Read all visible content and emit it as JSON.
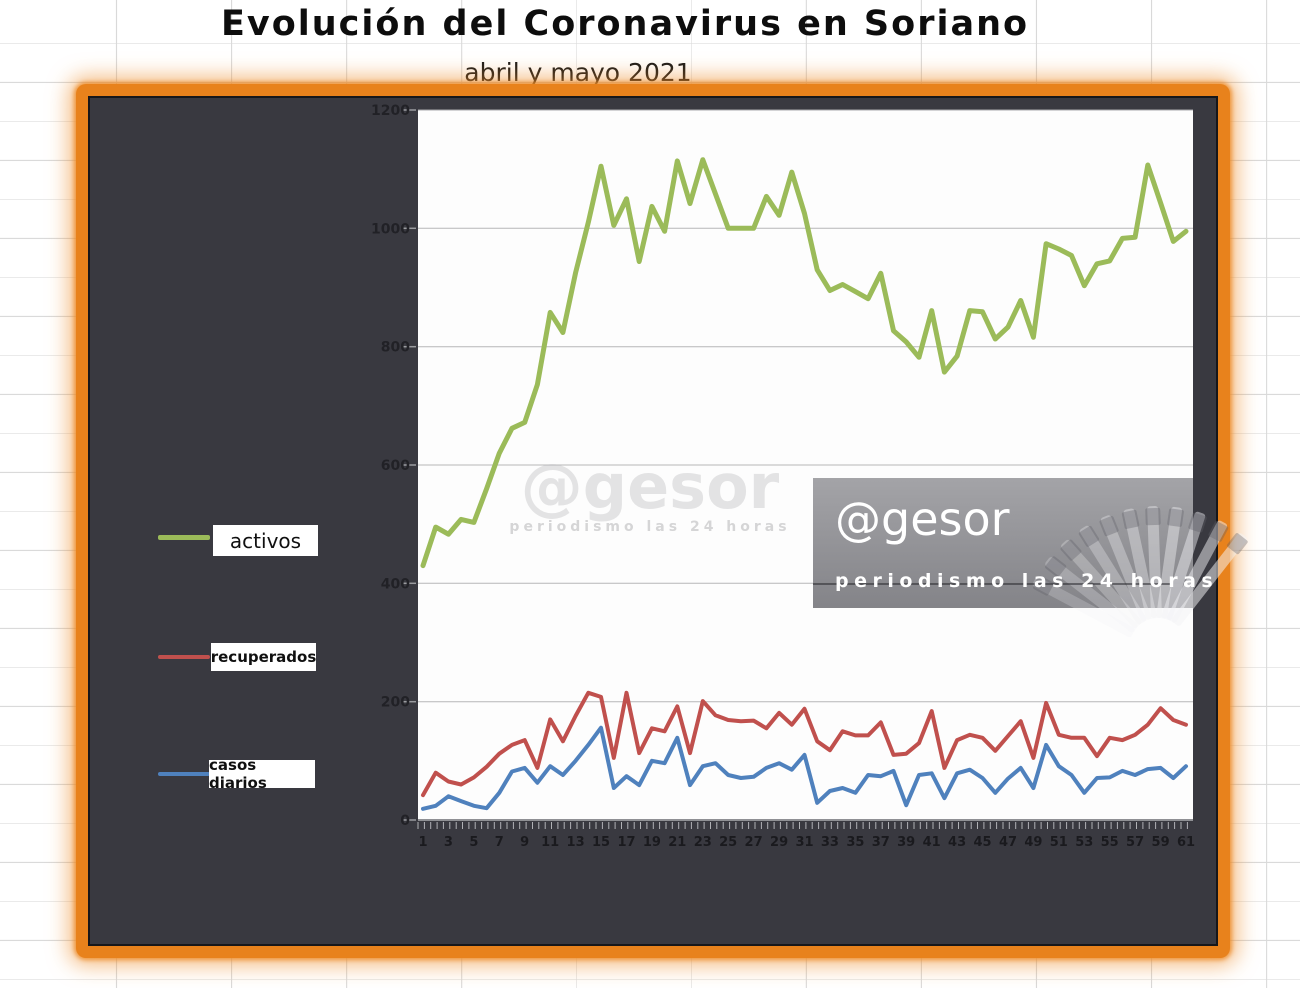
{
  "colors": {
    "frame_orange": "#e8821c",
    "panel_dark": "#393940",
    "plot_white": "#fdfdfd",
    "series_green": "#9bbb59",
    "series_red": "#c0504d",
    "series_blue": "#4f81bd"
  },
  "watermark_center": {
    "logo": "@gesor",
    "tagline": "periodismo las 24 horas"
  },
  "watermark_box": {
    "logo": "@gesor",
    "tagline": "periodismo las 24 horas"
  },
  "chart_data": {
    "type": "line",
    "title": "Evolución del Coronavirus en Soriano",
    "subtitle": "abril y mayo 2021",
    "xlabel": "",
    "ylabel": "",
    "ylim": [
      0,
      1200
    ],
    "yticks": [
      0,
      200,
      400,
      600,
      800,
      1000,
      1200
    ],
    "grid": true,
    "legend_position": "left",
    "x": [
      1,
      2,
      3,
      4,
      5,
      6,
      7,
      8,
      9,
      10,
      11,
      12,
      13,
      14,
      15,
      16,
      17,
      18,
      19,
      20,
      21,
      22,
      23,
      24,
      25,
      26,
      27,
      28,
      29,
      30,
      31,
      32,
      33,
      34,
      35,
      36,
      37,
      38,
      39,
      40,
      41,
      42,
      43,
      44,
      45,
      46,
      47,
      48,
      49,
      50,
      51,
      52,
      53,
      54,
      55,
      56,
      57,
      58,
      59,
      60,
      61
    ],
    "x_tick_labels": [
      1,
      3,
      5,
      7,
      9,
      11,
      13,
      15,
      17,
      19,
      21,
      23,
      25,
      27,
      29,
      31,
      33,
      35,
      37,
      39,
      41,
      43,
      45,
      47,
      49,
      51,
      53,
      55,
      57,
      59,
      61
    ],
    "series": [
      {
        "name": "activos",
        "color": "#9bbb59",
        "width": 5,
        "values": [
          430,
          495,
          483,
          508,
          503,
          560,
          620,
          662,
          672,
          736,
          858,
          824,
          925,
          1010,
          1105,
          1005,
          1050,
          944,
          1037,
          995,
          1114,
          1042,
          1116,
          1058,
          1000,
          1000,
          1000,
          1054,
          1022,
          1095,
          1025,
          930,
          895,
          905,
          893,
          881,
          924,
          827,
          808,
          782,
          861,
          757,
          784,
          861,
          859,
          813,
          833,
          878,
          816,
          974,
          965,
          954,
          903,
          940,
          945,
          983,
          985,
          1107,
          1043,
          978,
          995
        ]
      },
      {
        "name": "recuperados",
        "color": "#c0504d",
        "width": 4,
        "values": [
          42,
          80,
          65,
          60,
          72,
          90,
          112,
          127,
          135,
          88,
          170,
          133,
          176,
          215,
          208,
          105,
          215,
          113,
          155,
          150,
          192,
          113,
          201,
          177,
          169,
          167,
          168,
          155,
          181,
          161,
          188,
          133,
          118,
          150,
          143,
          143,
          165,
          110,
          112,
          130,
          184,
          88,
          135,
          144,
          139,
          117,
          142,
          167,
          105,
          198,
          144,
          139,
          139,
          108,
          139,
          135,
          144,
          161,
          189,
          169,
          161
        ]
      },
      {
        "name": "casos diarios",
        "color": "#4f81bd",
        "width": 4,
        "values": [
          19,
          24,
          40,
          32,
          24,
          20,
          46,
          82,
          88,
          63,
          91,
          76,
          100,
          127,
          156,
          54,
          74,
          59,
          100,
          96,
          139,
          59,
          91,
          96,
          76,
          71,
          73,
          88,
          96,
          85,
          110,
          29,
          49,
          54,
          46,
          76,
          74,
          83,
          25,
          76,
          79,
          37,
          79,
          85,
          71,
          46,
          70,
          88,
          54,
          127,
          91,
          76,
          46,
          71,
          72,
          83,
          76,
          86,
          88,
          71,
          91
        ]
      }
    ]
  }
}
